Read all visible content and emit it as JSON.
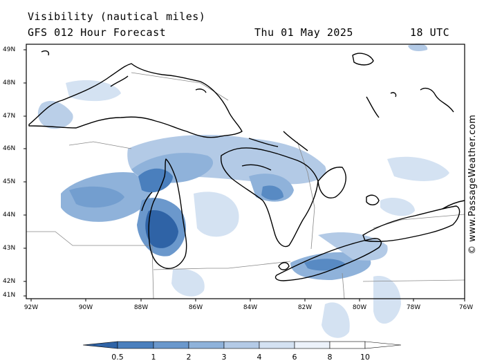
{
  "title_line1": "Visibility (nautical miles)",
  "title_line2": "GFS 012 Hour Forecast",
  "date": "Thu 01 May 2025",
  "time": "18 UTC",
  "credit": "© www.PassageWeather.com",
  "lat_labels": [
    "49N",
    "48N",
    "47N",
    "46N",
    "45N",
    "44N",
    "43N",
    "42N",
    "41N"
  ],
  "lon_labels": [
    "92W",
    "90W",
    "88W",
    "86W",
    "84W",
    "82W",
    "80W",
    "78W",
    "76W"
  ],
  "colorbar": {
    "labels": [
      "0.5",
      "1",
      "2",
      "3",
      "4",
      "6",
      "8",
      "10"
    ],
    "colors": [
      "#2f63a6",
      "#4a7fbd",
      "#6b98cc",
      "#8fb2da",
      "#b3cae6",
      "#d4e2f2",
      "#ecf2fa",
      "#ffffff"
    ]
  }
}
